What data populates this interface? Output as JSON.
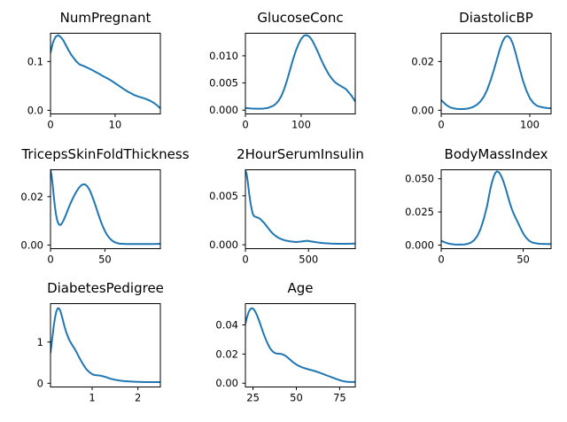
{
  "figure": {
    "background": "#ffffff",
    "line_color": "#1f77b4",
    "text_color": "#000000"
  },
  "chart_data": [
    {
      "type": "line",
      "subtype": "kde-density",
      "title": "NumPregnant",
      "xlabel": "",
      "ylabel": "",
      "grid": false,
      "legend": null,
      "xlim": [
        0,
        17
      ],
      "ylim": [
        -0.0075,
        0.158
      ],
      "xticks": {
        "values": [
          0,
          10
        ],
        "labels": [
          "0",
          "10"
        ]
      },
      "yticks": {
        "values": [
          0.0,
          0.1
        ],
        "labels": [
          "0.0",
          "0.1"
        ]
      },
      "series": [
        {
          "name": "density",
          "color": "#1f77b4",
          "x": [
            0,
            0.4,
            0.8,
            1.2,
            1.6,
            2,
            2.4,
            2.8,
            3.2,
            3.6,
            4,
            4.5,
            5,
            5.5,
            6,
            6.5,
            7,
            7.5,
            8,
            8.5,
            9,
            9.5,
            10,
            10.5,
            11,
            11.5,
            12,
            12.5,
            13,
            13.5,
            14,
            14.5,
            15,
            15.5,
            16,
            16.5,
            17
          ],
          "y": [
            0.118,
            0.14,
            0.151,
            0.154,
            0.15,
            0.143,
            0.133,
            0.123,
            0.114,
            0.107,
            0.1,
            0.094,
            0.0915,
            0.0885,
            0.0855,
            0.082,
            0.0785,
            0.075,
            0.071,
            0.0675,
            0.064,
            0.06,
            0.0555,
            0.051,
            0.0465,
            0.042,
            0.038,
            0.0345,
            0.031,
            0.0285,
            0.0265,
            0.0245,
            0.022,
            0.019,
            0.015,
            0.01,
            0.004
          ]
        }
      ]
    },
    {
      "type": "line",
      "subtype": "kde-density",
      "title": "GlucoseConc",
      "xlabel": "",
      "ylabel": "",
      "grid": false,
      "legend": null,
      "xlim": [
        0,
        197
      ],
      "ylim": [
        -0.0007,
        0.01415
      ],
      "xticks": {
        "values": [
          0,
          100
        ],
        "labels": [
          "0",
          "100"
        ]
      },
      "yticks": {
        "values": [
          0.0,
          0.005,
          0.01
        ],
        "labels": [
          "0.000",
          "0.005",
          "0.010"
        ]
      },
      "series": [
        {
          "name": "density",
          "color": "#1f77b4",
          "x": [
            0,
            10,
            20,
            30,
            40,
            50,
            55,
            60,
            65,
            70,
            75,
            80,
            85,
            90,
            95,
            100,
            105,
            110,
            115,
            120,
            125,
            130,
            135,
            140,
            145,
            150,
            155,
            160,
            165,
            170,
            175,
            180,
            185,
            190,
            197
          ],
          "y": [
            0.0004,
            0.0003,
            0.00025,
            0.00025,
            0.0004,
            0.0008,
            0.0012,
            0.0018,
            0.0027,
            0.004,
            0.0056,
            0.0074,
            0.0092,
            0.0108,
            0.0121,
            0.0131,
            0.0137,
            0.0138,
            0.0135,
            0.0128,
            0.0118,
            0.0107,
            0.0095,
            0.0084,
            0.0074,
            0.0065,
            0.0058,
            0.0052,
            0.0048,
            0.0045,
            0.0042,
            0.0039,
            0.0033,
            0.0027,
            0.0016
          ]
        }
      ]
    },
    {
      "type": "line",
      "subtype": "kde-density",
      "title": "DiastolicBP",
      "xlabel": "",
      "ylabel": "",
      "grid": false,
      "legend": null,
      "xlim": [
        0,
        124
      ],
      "ylim": [
        -0.0015,
        0.0316
      ],
      "xticks": {
        "values": [
          0,
          100
        ],
        "labels": [
          "0",
          "100"
        ]
      },
      "yticks": {
        "values": [
          0.0,
          0.02
        ],
        "labels": [
          "0.00",
          "0.02"
        ]
      },
      "series": [
        {
          "name": "density",
          "color": "#1f77b4",
          "x": [
            0,
            3,
            6,
            10,
            15,
            20,
            25,
            30,
            35,
            40,
            44,
            48,
            52,
            56,
            60,
            63,
            66,
            69,
            72,
            75,
            78,
            81,
            84,
            88,
            92,
            96,
            100,
            104,
            108,
            112,
            116,
            120,
            124
          ],
          "y": [
            0.0042,
            0.0031,
            0.0021,
            0.0012,
            0.0007,
            0.0005,
            0.0005,
            0.0007,
            0.0012,
            0.0022,
            0.0035,
            0.0055,
            0.0085,
            0.0125,
            0.0172,
            0.021,
            0.0248,
            0.028,
            0.03,
            0.0305,
            0.0296,
            0.0272,
            0.0235,
            0.0178,
            0.0125,
            0.0082,
            0.005,
            0.003,
            0.0019,
            0.0014,
            0.0011,
            0.0009,
            0.0008
          ]
        }
      ]
    },
    {
      "type": "line",
      "subtype": "kde-density",
      "title": "TricepsSkinFoldThickness",
      "xlabel": "",
      "ylabel": "",
      "grid": false,
      "legend": null,
      "xlim": [
        0,
        101
      ],
      "ylim": [
        -0.0015,
        0.0311
      ],
      "xticks": {
        "values": [
          0,
          50
        ],
        "labels": [
          "0",
          "50"
        ]
      },
      "yticks": {
        "values": [
          0.0,
          0.02
        ],
        "labels": [
          "0.00",
          "0.02"
        ]
      },
      "series": [
        {
          "name": "density",
          "color": "#1f77b4",
          "x": [
            0,
            1,
            2,
            3,
            4,
            5,
            6,
            7,
            8,
            9,
            10,
            12,
            14,
            16,
            18,
            20,
            22,
            24,
            26,
            28,
            30,
            32,
            34,
            36,
            38,
            40,
            42,
            44,
            46,
            48,
            50,
            52,
            54,
            56,
            58,
            60,
            63,
            66,
            70,
            75,
            80,
            85,
            90,
            95,
            101
          ],
          "y": [
            0.0311,
            0.0287,
            0.0248,
            0.0203,
            0.0161,
            0.0128,
            0.0105,
            0.0091,
            0.0084,
            0.0083,
            0.0086,
            0.0102,
            0.0123,
            0.0146,
            0.0168,
            0.0188,
            0.0206,
            0.0222,
            0.0236,
            0.0246,
            0.0251,
            0.025,
            0.0242,
            0.0227,
            0.0206,
            0.0181,
            0.0154,
            0.0127,
            0.0101,
            0.0078,
            0.0058,
            0.0042,
            0.003,
            0.0021,
            0.0014,
            0.001,
            0.0006,
            0.0005,
            0.0004,
            0.0004,
            0.0004,
            0.0004,
            0.0004,
            0.0004,
            0.0005
          ]
        }
      ]
    },
    {
      "type": "line",
      "subtype": "kde-density",
      "title": "2HourSerumInsulin",
      "xlabel": "",
      "ylabel": "",
      "grid": false,
      "legend": null,
      "xlim": [
        0,
        870
      ],
      "ylim": [
        -0.0004,
        0.00765
      ],
      "xticks": {
        "values": [
          0,
          500
        ],
        "labels": [
          "0",
          "500"
        ]
      },
      "yticks": {
        "values": [
          0.0,
          0.005
        ],
        "labels": [
          "0.000",
          "0.005"
        ]
      },
      "series": [
        {
          "name": "density",
          "color": "#1f77b4",
          "x": [
            0,
            10,
            20,
            30,
            40,
            50,
            60,
            70,
            80,
            90,
            100,
            110,
            120,
            135,
            150,
            165,
            180,
            200,
            220,
            240,
            260,
            280,
            300,
            330,
            360,
            400,
            440,
            470,
            490,
            510,
            540,
            580,
            620,
            680,
            740,
            800,
            870
          ],
          "y": [
            0.0076,
            0.0072,
            0.0063,
            0.0052,
            0.0043,
            0.0036,
            0.0031,
            0.0029,
            0.00285,
            0.0028,
            0.00275,
            0.0027,
            0.0026,
            0.0024,
            0.0022,
            0.00195,
            0.0017,
            0.00138,
            0.0011,
            0.0009,
            0.00072,
            0.0006,
            0.0005,
            0.0004,
            0.00033,
            0.00028,
            0.00032,
            0.00038,
            0.0004,
            0.00036,
            0.0003,
            0.00022,
            0.00017,
            0.00012,
            0.0001,
            0.0001,
            0.00012
          ]
        }
      ]
    },
    {
      "type": "line",
      "subtype": "kde-density",
      "title": "BodyMassIndex",
      "xlabel": "",
      "ylabel": "",
      "grid": false,
      "legend": null,
      "xlim": [
        0,
        67
      ],
      "ylim": [
        -0.0027,
        0.0568
      ],
      "xticks": {
        "values": [
          0,
          50
        ],
        "labels": [
          "0",
          "50"
        ]
      },
      "yticks": {
        "values": [
          0.0,
          0.025,
          0.05
        ],
        "labels": [
          "0.000",
          "0.025",
          "0.050"
        ]
      },
      "series": [
        {
          "name": "density",
          "color": "#1f77b4",
          "x": [
            0,
            2,
            4,
            6,
            8,
            10,
            12,
            14,
            16,
            18,
            20,
            22,
            24,
            26,
            28,
            30,
            31,
            32,
            33,
            34,
            35,
            36,
            37,
            38,
            39,
            40,
            41,
            42,
            43,
            44,
            45,
            46,
            47,
            48,
            49,
            50,
            51,
            52,
            53,
            54,
            55,
            56,
            58,
            60,
            62,
            64,
            67
          ],
          "y": [
            0.0032,
            0.0022,
            0.0013,
            0.0008,
            0.0005,
            0.0004,
            0.0004,
            0.0005,
            0.0009,
            0.0018,
            0.0036,
            0.0068,
            0.0121,
            0.0198,
            0.0296,
            0.0425,
            0.0475,
            0.0515,
            0.0545,
            0.0556,
            0.0551,
            0.0535,
            0.051,
            0.0478,
            0.044,
            0.0398,
            0.0354,
            0.0312,
            0.0275,
            0.0243,
            0.0216,
            0.019,
            0.0164,
            0.0138,
            0.0112,
            0.0089,
            0.0069,
            0.0053,
            0.004,
            0.003,
            0.0023,
            0.0018,
            0.0013,
            0.001,
            0.0009,
            0.0008,
            0.0008
          ]
        }
      ]
    },
    {
      "type": "line",
      "subtype": "kde-density",
      "title": "DiabetesPedigree",
      "xlabel": "",
      "ylabel": "",
      "grid": false,
      "legend": null,
      "xlim": [
        0.09,
        2.49
      ],
      "ylim": [
        -0.09,
        1.93
      ],
      "xticks": {
        "values": [
          1,
          2
        ],
        "labels": [
          "1",
          "2"
        ]
      },
      "yticks": {
        "values": [
          0,
          1
        ],
        "labels": [
          "0",
          "1"
        ]
      },
      "series": [
        {
          "name": "density",
          "color": "#1f77b4",
          "x": [
            0.09,
            0.13,
            0.16,
            0.19,
            0.22,
            0.25,
            0.28,
            0.31,
            0.34,
            0.37,
            0.4,
            0.43,
            0.46,
            0.5,
            0.54,
            0.58,
            0.62,
            0.66,
            0.7,
            0.74,
            0.78,
            0.82,
            0.86,
            0.9,
            0.95,
            1.0,
            1.05,
            1.1,
            1.15,
            1.2,
            1.25,
            1.3,
            1.4,
            1.5,
            1.6,
            1.7,
            1.8,
            1.9,
            2.0,
            2.1,
            2.2,
            2.3,
            2.4,
            2.49
          ],
          "y": [
            0.74,
            1.1,
            1.38,
            1.6,
            1.75,
            1.82,
            1.81,
            1.74,
            1.62,
            1.49,
            1.36,
            1.25,
            1.16,
            1.05,
            0.97,
            0.9,
            0.83,
            0.75,
            0.66,
            0.58,
            0.5,
            0.43,
            0.36,
            0.31,
            0.26,
            0.22,
            0.2,
            0.195,
            0.19,
            0.18,
            0.165,
            0.15,
            0.11,
            0.085,
            0.065,
            0.052,
            0.044,
            0.038,
            0.034,
            0.031,
            0.029,
            0.028,
            0.028,
            0.028
          ]
        }
      ]
    },
    {
      "type": "line",
      "subtype": "kde-density",
      "title": "Age",
      "xlabel": "",
      "ylabel": "",
      "grid": false,
      "legend": null,
      "xlim": [
        20.6,
        84
      ],
      "ylim": [
        -0.0026,
        0.0546
      ],
      "xticks": {
        "values": [
          25,
          50,
          75
        ],
        "labels": [
          "25",
          "50",
          "75"
        ]
      },
      "yticks": {
        "values": [
          0.0,
          0.02,
          0.04
        ],
        "labels": [
          "0.00",
          "0.02",
          "0.04"
        ]
      },
      "series": [
        {
          "name": "density",
          "color": "#1f77b4",
          "x": [
            20.6,
            21.5,
            22.5,
            23.5,
            24.5,
            25.5,
            26.5,
            27.5,
            28.5,
            29.5,
            30.5,
            31.5,
            32.5,
            33.5,
            34.5,
            35.5,
            36.5,
            37.5,
            38.5,
            40,
            41.5,
            43,
            44.5,
            46,
            47.5,
            49,
            51,
            53,
            55,
            57,
            59,
            61,
            63,
            65,
            67,
            69,
            71,
            73,
            75,
            77,
            79,
            81,
            84
          ],
          "y": [
            0.0408,
            0.0452,
            0.0489,
            0.051,
            0.0515,
            0.0506,
            0.0487,
            0.046,
            0.0428,
            0.0394,
            0.036,
            0.0327,
            0.0297,
            0.027,
            0.0247,
            0.0229,
            0.0216,
            0.0208,
            0.0204,
            0.0202,
            0.02,
            0.0193,
            0.0181,
            0.0166,
            0.015,
            0.0136,
            0.0121,
            0.011,
            0.0102,
            0.0095,
            0.0089,
            0.0082,
            0.0074,
            0.0065,
            0.0056,
            0.0047,
            0.0038,
            0.0029,
            0.0021,
            0.0014,
            0.001,
            0.0008,
            0.0008
          ]
        }
      ]
    }
  ]
}
